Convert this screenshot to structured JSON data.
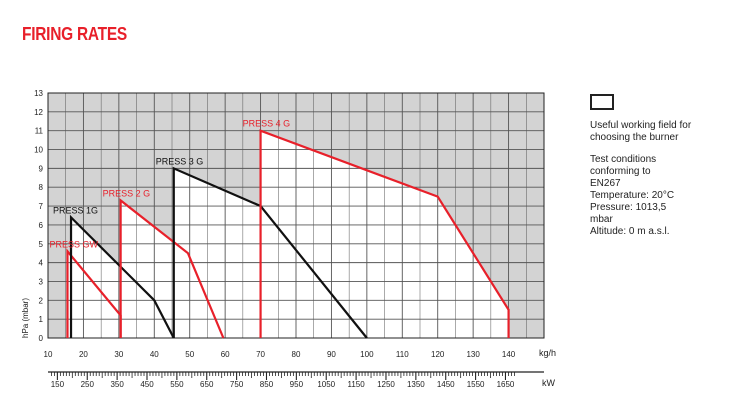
{
  "title": "FIRING RATES",
  "legend": {
    "swatch": "useful-working-field-swatch",
    "label": "Useful working field for choosing the burner"
  },
  "notes": [
    "Test conditions",
    "conforming to",
    "EN267",
    "Temperature: 20°C",
    "Pressure: 1013,5",
    "mbar",
    "Altitude: 0 m a.s.l."
  ],
  "colors": {
    "red": "#e8202a",
    "black": "#111111",
    "shade": "#d3d3d3",
    "grid": "#555555"
  },
  "chart_data": {
    "type": "line",
    "title": "",
    "ylabel": "hPa (mbar)",
    "xlabel": "kg/h",
    "x2label": "kW",
    "xlim": [
      10,
      150
    ],
    "ylim": [
      0,
      13
    ],
    "xticks": [
      10,
      20,
      30,
      40,
      50,
      60,
      70,
      80,
      90,
      100,
      110,
      120,
      130,
      140
    ],
    "yticks": [
      0,
      1,
      2,
      3,
      4,
      5,
      6,
      7,
      8,
      9,
      10,
      11,
      12,
      13
    ],
    "kw_scale": {
      "ticks": [
        150,
        250,
        350,
        450,
        550,
        650,
        750,
        850,
        950,
        1050,
        1150,
        1250,
        1350,
        1450,
        1550,
        1650
      ],
      "kw_per_kgh": 11.86
    },
    "grid": true,
    "series": [
      {
        "name": "PRESS GW",
        "color": "#e8202a",
        "points": [
          [
            15.5,
            0
          ],
          [
            15.5,
            4.6
          ],
          [
            30.5,
            1.2
          ],
          [
            30.5,
            0
          ]
        ]
      },
      {
        "name": "PRESS 1G",
        "color": "#111111",
        "points": [
          [
            16.5,
            0
          ],
          [
            16.5,
            6.4
          ],
          [
            40,
            2.0
          ],
          [
            45.5,
            0
          ]
        ]
      },
      {
        "name": "PRESS 2 G",
        "color": "#e8202a",
        "points": [
          [
            30.5,
            0
          ],
          [
            30.5,
            7.3
          ],
          [
            49.5,
            4.5
          ],
          [
            59.5,
            0
          ]
        ]
      },
      {
        "name": "PRESS 3 G",
        "color": "#111111",
        "points": [
          [
            45.5,
            0
          ],
          [
            45.5,
            9.0
          ],
          [
            70,
            7.0
          ],
          [
            100,
            0
          ]
        ]
      },
      {
        "name": "PRESS 4 G",
        "color": "#e8202a",
        "points": [
          [
            70,
            0
          ],
          [
            70,
            11.0
          ],
          [
            120,
            7.5
          ],
          [
            140,
            1.5
          ],
          [
            140,
            0
          ]
        ]
      }
    ]
  }
}
